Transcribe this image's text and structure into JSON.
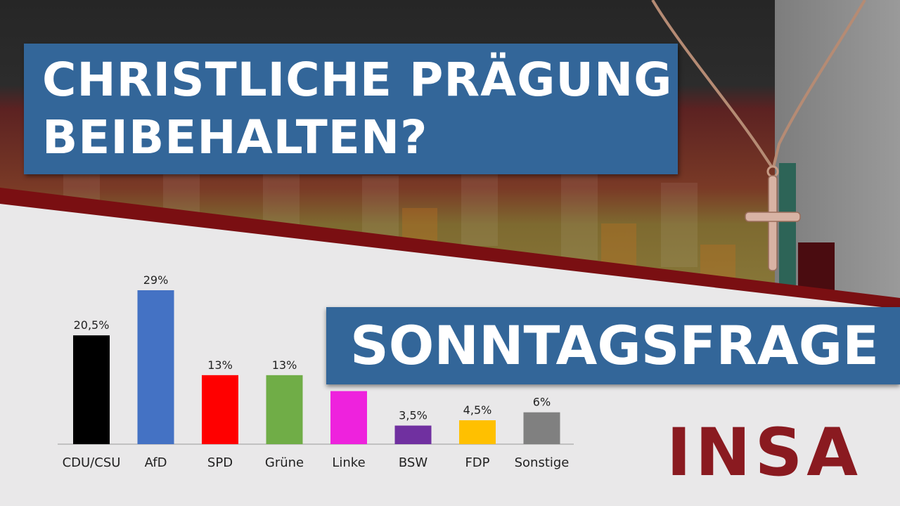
{
  "headline": {
    "line1": "CHRISTLICHE PRÄGUNG",
    "line2": "BEIBEHALTEN?"
  },
  "survey_label": "SONNTAGSFRAGE",
  "logo_text": "INSA",
  "colors": {
    "banner": "#336699",
    "logo": "#8a1a20",
    "stripe": "#7a0f12"
  },
  "chart_data": {
    "type": "bar",
    "title": "",
    "xlabel": "",
    "ylabel": "",
    "ylim": [
      0,
      29
    ],
    "categories": [
      "CDU/CSU",
      "AfD",
      "SPD",
      "Grüne",
      "Linke",
      "BSW",
      "FDP",
      "Sonstige"
    ],
    "values": [
      20.5,
      29,
      13,
      13,
      10,
      3.5,
      4.5,
      6
    ],
    "value_labels": [
      "20,5%",
      "29%",
      "13%",
      "13%",
      "",
      "3,5%",
      "4,5%",
      "6%"
    ],
    "colors": [
      "#000000",
      "#4472c4",
      "#ff0000",
      "#70ad47",
      "#ee22dd",
      "#7030a0",
      "#ffc000",
      "#808080"
    ],
    "grid": false,
    "legend": "none"
  }
}
